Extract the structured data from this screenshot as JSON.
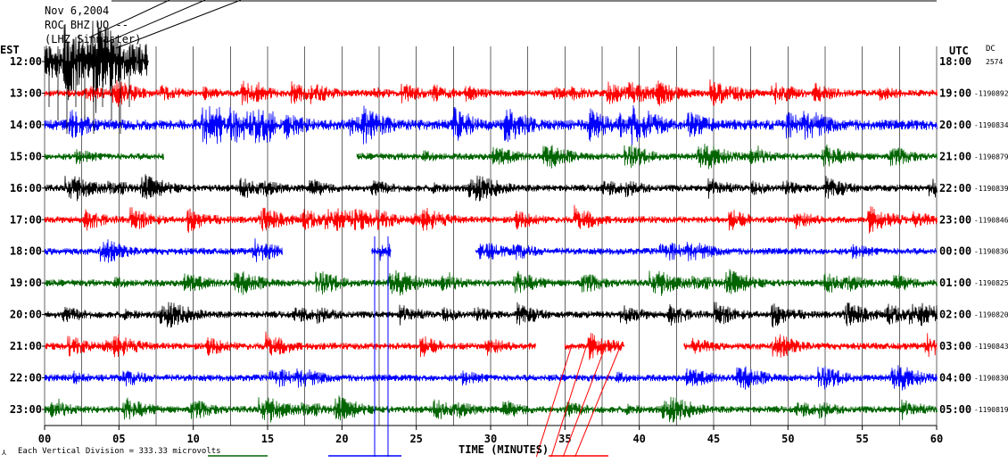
{
  "header": {
    "date": "Nov 6,2004",
    "station": "ROC  BHZ UO --",
    "network": "(LHZ Sinmaster)"
  },
  "colors": {
    "background": "#ffffff",
    "grid": "#000000",
    "trace_red": "#ff0000",
    "trace_blue": "#0000ff",
    "trace_green": "#006400",
    "trace_black": "#000000"
  },
  "chart_data": {
    "type": "line",
    "title": "",
    "xlabel": "TIME (MINUTES)",
    "left_label": "EST",
    "right_label": "UTC",
    "dc_label": "DC",
    "xlim": [
      0,
      60
    ],
    "x_ticks": [
      "00",
      "05",
      "10",
      "15",
      "20",
      "25",
      "30",
      "35",
      "40",
      "45",
      "50",
      "55",
      "60"
    ],
    "grid": true,
    "footer_note": "Each Vertical Division =  333.33 microvolts",
    "rows": [
      {
        "est": "12:00",
        "utc": "18:00",
        "dc": "2574",
        "color": "#000000",
        "segments": [
          [
            0,
            7
          ]
        ],
        "amp": 20,
        "events": []
      },
      {
        "est": "13:00",
        "utc": "19:00",
        "dc": "1190892",
        "color": "#ff0000",
        "segments": [
          [
            0,
            60
          ]
        ],
        "amp": 4,
        "events": [
          [
            14.3,
            14.4,
            20
          ]
        ]
      },
      {
        "est": "14:00",
        "utc": "20:00",
        "dc": "1190834",
        "color": "#0000ff",
        "segments": [
          [
            0,
            60
          ]
        ],
        "amp": 6,
        "events": [
          [
            10.5,
            15.5,
            24
          ],
          [
            20.5,
            22.5,
            16
          ]
        ]
      },
      {
        "est": "15:00",
        "utc": "21:00",
        "dc": "1190879",
        "color": "#006400",
        "segments": [
          [
            0,
            8
          ],
          [
            21,
            60
          ]
        ],
        "amp": 4,
        "events": []
      },
      {
        "est": "16:00",
        "utc": "22:00",
        "dc": "1190839",
        "color": "#000000",
        "segments": [
          [
            0,
            60
          ]
        ],
        "amp": 4,
        "events": []
      },
      {
        "est": "17:00",
        "utc": "23:00",
        "dc": "1190846",
        "color": "#ff0000",
        "segments": [
          [
            0,
            60
          ]
        ],
        "amp": 4,
        "events": []
      },
      {
        "est": "18:00",
        "utc": "00:00",
        "dc": "1190836",
        "color": "#0000ff",
        "segments": [
          [
            0,
            16
          ],
          [
            22,
            23.3
          ],
          [
            29,
            60
          ]
        ],
        "amp": 4,
        "events": [
          [
            22.5,
            23.2,
            12
          ]
        ]
      },
      {
        "est": "19:00",
        "utc": "01:00",
        "dc": "1190825",
        "color": "#006400",
        "segments": [
          [
            0,
            60
          ]
        ],
        "amp": 4,
        "events": []
      },
      {
        "est": "20:00",
        "utc": "02:00",
        "dc": "1190820",
        "color": "#000000",
        "segments": [
          [
            0,
            60
          ]
        ],
        "amp": 4,
        "events": []
      },
      {
        "est": "21:00",
        "utc": "03:00",
        "dc": "1190843",
        "color": "#ff0000",
        "segments": [
          [
            0,
            33
          ],
          [
            35,
            39
          ],
          [
            43,
            60
          ]
        ],
        "amp": 4,
        "events": []
      },
      {
        "est": "22:00",
        "utc": "04:00",
        "dc": "1190830",
        "color": "#0000ff",
        "segments": [
          [
            0,
            60
          ]
        ],
        "amp": 4,
        "events": []
      },
      {
        "est": "23:00",
        "utc": "05:00",
        "dc": "1190819",
        "color": "#006400",
        "segments": [
          [
            0,
            60
          ]
        ],
        "amp": 4,
        "events": []
      }
    ]
  }
}
